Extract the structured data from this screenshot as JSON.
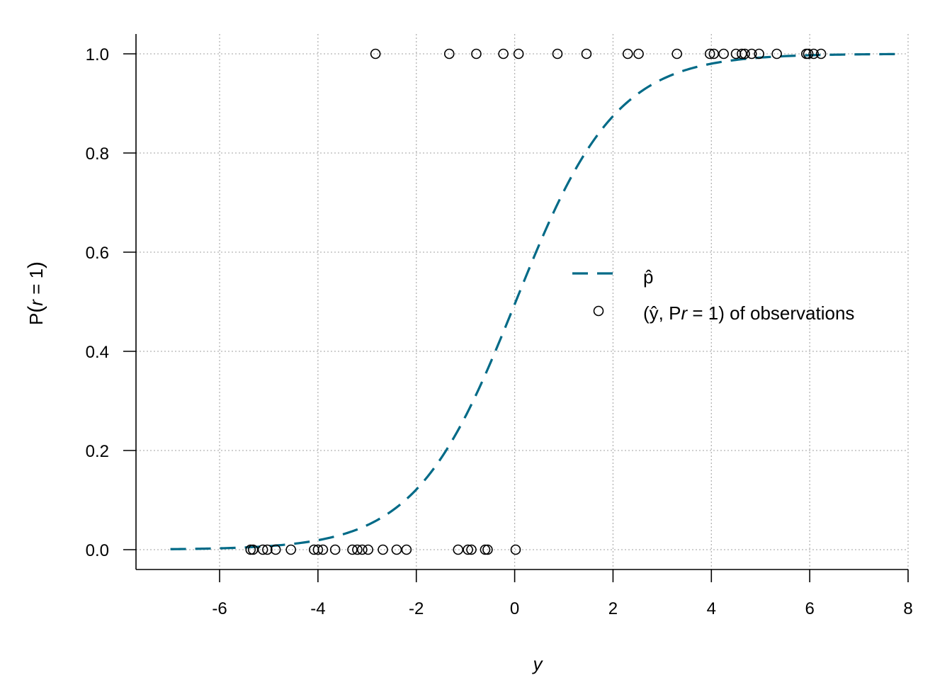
{
  "chart_data": {
    "type": "scatter",
    "xlabel": "y",
    "ylabel_main": "P",
    "ylabel_var": "r",
    "ylabel_eq": " = 1",
    "xlim": [
      -7.7,
      8
    ],
    "ylim": [
      -0.04,
      1.04
    ],
    "x_ticks": [
      -6,
      -4,
      -2,
      0,
      2,
      4,
      6,
      8
    ],
    "x_tick_labels": [
      "-6",
      "-4",
      "-2",
      "0",
      "2",
      "4",
      "6",
      "8"
    ],
    "y_ticks": [
      0.0,
      0.2,
      0.4,
      0.6,
      0.8,
      1.0
    ],
    "y_tick_labels": [
      "0.0",
      "0.2",
      "0.4",
      "0.6",
      "0.8",
      "1.0"
    ],
    "grid": true,
    "legend_placement": "center-right",
    "curve": {
      "style": "dashed",
      "color": "#006a87",
      "model": "logistic",
      "intercept": -0.02,
      "slope": 0.98,
      "x_range": [
        -7.0,
        7.8
      ]
    },
    "legend": {
      "curve_label": "p̂",
      "points_label_prefix": "(ŷ, P",
      "points_label_var": "r",
      "points_label_eq": " = 1",
      "points_label_suffix": ") of observations"
    },
    "points_color": "#000000",
    "points": {
      "ones_x": [
        -2.83,
        -1.33,
        -0.78,
        -0.23,
        0.08,
        0.87,
        1.46,
        2.3,
        2.52,
        3.3,
        3.97,
        4.05,
        4.25,
        4.5,
        4.62,
        4.68,
        4.82,
        4.97,
        5.33,
        5.93,
        5.97,
        6.08,
        6.23
      ],
      "zeros_x": [
        -5.37,
        -5.32,
        -5.12,
        -5.03,
        -4.86,
        -4.55,
        -4.08,
        -4.0,
        -3.9,
        -3.65,
        -3.3,
        -3.2,
        -3.1,
        -2.98,
        -2.68,
        -2.4,
        -2.2,
        -1.15,
        -0.95,
        -0.88,
        -0.6,
        -0.55,
        0.02
      ]
    }
  }
}
